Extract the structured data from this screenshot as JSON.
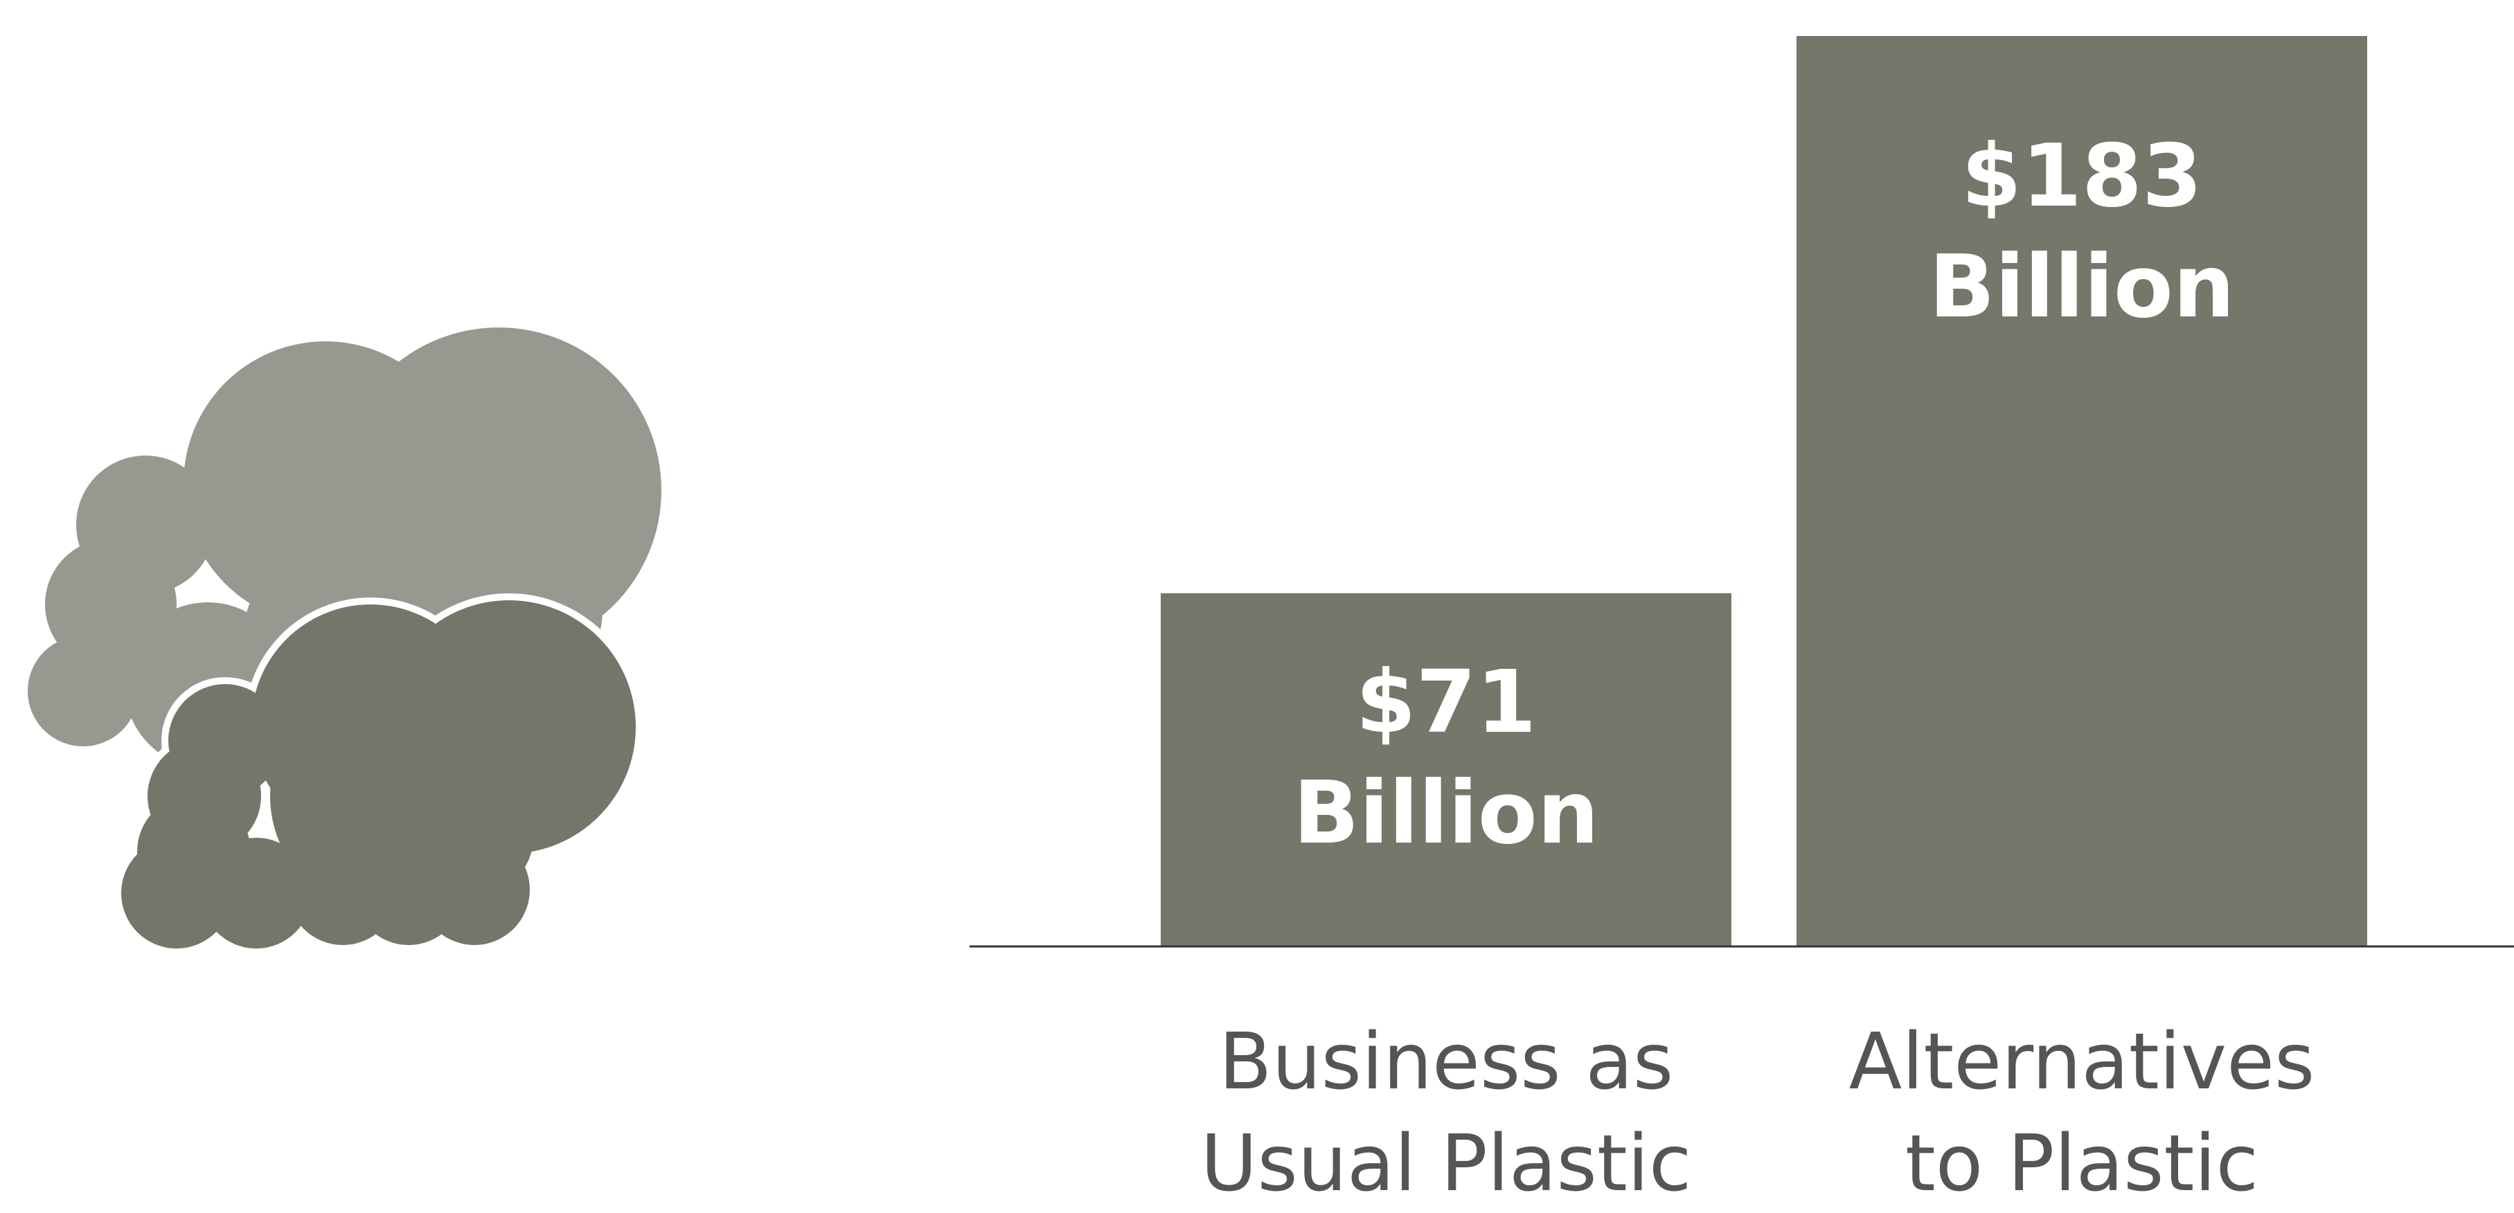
{
  "chart_data": {
    "type": "bar",
    "categories": [
      "Business as Usual Plastic",
      "Alternatives to Plastic"
    ],
    "category_label_lines": [
      [
        "Business as",
        "Usual Plastic"
      ],
      [
        "Alternatives",
        "to Plastic"
      ]
    ],
    "values": [
      71,
      183
    ],
    "value_labels": [
      [
        "$71",
        "Billion"
      ],
      [
        "$183",
        "Billion"
      ]
    ],
    "unit": "Billion",
    "ylim": [
      0,
      183
    ],
    "title": "",
    "xlabel": "",
    "ylabel": "",
    "grid": false,
    "legend": "none"
  },
  "colors": {
    "bar": "#75776a",
    "baseline": "#333333",
    "value_text": "#ffffff",
    "category_text": "#555555",
    "cloud_back": "#979890",
    "cloud_front": "#74766a"
  },
  "icons": {
    "illustration": "smoke-clouds-icon"
  }
}
